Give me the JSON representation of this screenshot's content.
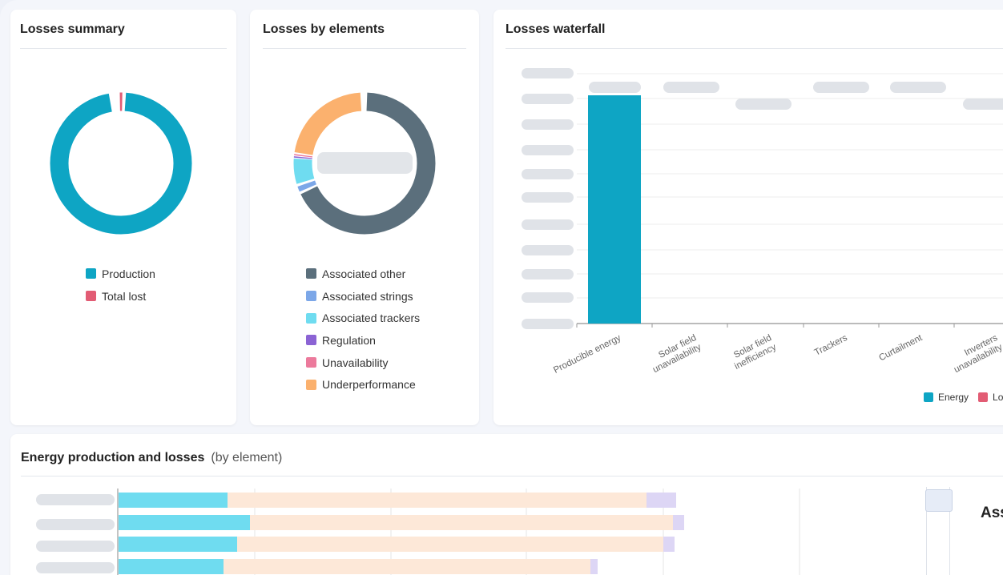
{
  "losses_summary": {
    "title": "Losses summary",
    "legend": [
      {
        "label": "Production",
        "color": "#0ea5c4"
      },
      {
        "label": "Total lost",
        "color": "#e25c74"
      }
    ]
  },
  "losses_by_elements": {
    "title": "Losses by elements",
    "legend": [
      {
        "label": "Associated other",
        "color": "#5b6f7c"
      },
      {
        "label": "Associated strings",
        "color": "#7ca7e8"
      },
      {
        "label": "Associated trackers",
        "color": "#6fdcf0"
      },
      {
        "label": "Regulation",
        "color": "#8b63d4"
      },
      {
        "label": "Unavailability",
        "color": "#ec7a9c"
      },
      {
        "label": "Underperformance",
        "color": "#fbb16e"
      }
    ]
  },
  "losses_waterfall": {
    "title": "Losses waterfall",
    "x_labels": [
      "Producible energy",
      "Solar field unavailability",
      "Solar field inefficiency",
      "Trackers",
      "Curtailment",
      "Inverters unavailability"
    ],
    "legend": [
      {
        "label": "Energy",
        "color": "#0ea5c4"
      },
      {
        "label": "Lo",
        "color": "#e25c74"
      }
    ]
  },
  "energy_production": {
    "title": "Energy production and losses",
    "subtitle": "(by element)",
    "side_text": "Ass"
  },
  "colors": {
    "production": "#0ea5c4",
    "lost": "#e25c74",
    "trackers_bar": "#6fdcf0",
    "underperformance_bar": "#fde8d8",
    "regulation_bar": "#ddd6f5"
  }
}
